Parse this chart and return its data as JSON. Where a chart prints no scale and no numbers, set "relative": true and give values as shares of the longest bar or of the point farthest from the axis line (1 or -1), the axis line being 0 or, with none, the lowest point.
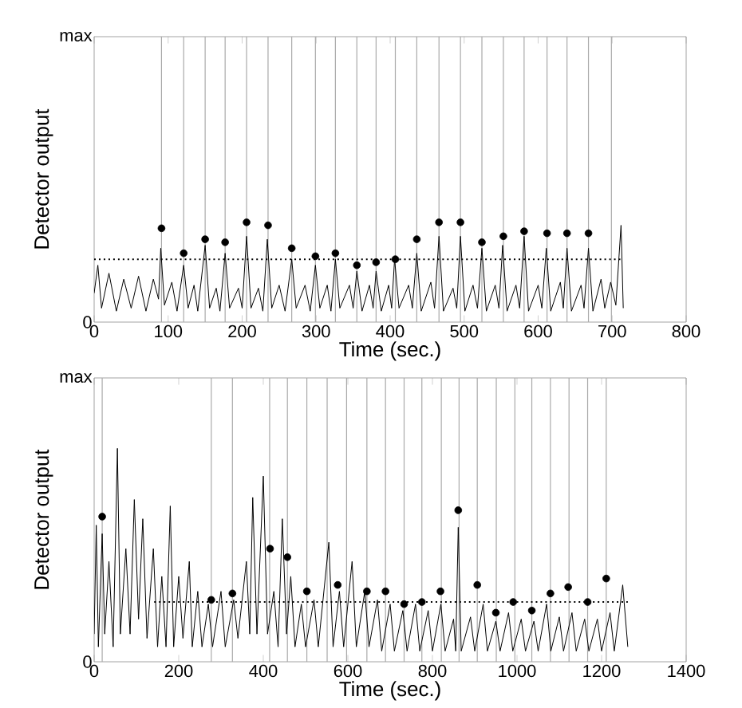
{
  "chart_data": [
    {
      "type": "line",
      "relative": true,
      "xlabel": "Time (sec.)",
      "ylabel": "Detector output",
      "xlim": [
        0,
        800
      ],
      "xticks": [
        0,
        100,
        200,
        300,
        400,
        500,
        600,
        700,
        800
      ],
      "grid": false,
      "annotations": [
        "0",
        "max"
      ],
      "ref_lines": [
        {
          "axis": "x",
          "value": 91,
          "color": "#aaaaaa"
        },
        {
          "axis": "x",
          "value": 121,
          "color": "#aaaaaa"
        },
        {
          "axis": "x",
          "value": 150,
          "color": "#aaaaaa"
        },
        {
          "axis": "x",
          "value": 177,
          "color": "#aaaaaa"
        },
        {
          "axis": "x",
          "value": 206,
          "color": "#aaaaaa"
        },
        {
          "axis": "x",
          "value": 235,
          "color": "#aaaaaa"
        },
        {
          "axis": "x",
          "value": 267,
          "color": "#aaaaaa"
        },
        {
          "axis": "x",
          "value": 299,
          "color": "#aaaaaa"
        },
        {
          "axis": "x",
          "value": 326,
          "color": "#aaaaaa"
        },
        {
          "axis": "x",
          "value": 355,
          "color": "#aaaaaa"
        },
        {
          "axis": "x",
          "value": 381,
          "color": "#aaaaaa"
        },
        {
          "axis": "x",
          "value": 407,
          "color": "#aaaaaa"
        },
        {
          "axis": "x",
          "value": 436,
          "color": "#aaaaaa"
        },
        {
          "axis": "x",
          "value": 466,
          "color": "#aaaaaa"
        },
        {
          "axis": "x",
          "value": 495,
          "color": "#aaaaaa"
        },
        {
          "axis": "x",
          "value": 524,
          "color": "#aaaaaa"
        },
        {
          "axis": "x",
          "value": 553,
          "color": "#aaaaaa"
        },
        {
          "axis": "x",
          "value": 581,
          "color": "#aaaaaa"
        },
        {
          "axis": "x",
          "value": 612,
          "color": "#aaaaaa"
        },
        {
          "axis": "x",
          "value": 639,
          "color": "#aaaaaa"
        },
        {
          "axis": "x",
          "value": 668,
          "color": "#aaaaaa"
        },
        {
          "axis": "x",
          "value": 699,
          "color": "#aaaaaa"
        }
      ],
      "series": [
        {
          "color": "#000000",
          "line_style": "solid",
          "x": [
            0,
            5,
            10,
            20,
            30,
            40,
            50,
            60,
            70,
            80,
            87,
            90,
            95,
            105,
            112,
            121,
            127,
            135,
            140,
            150,
            156,
            165,
            170,
            177,
            183,
            195,
            200,
            206,
            212,
            222,
            228,
            234,
            240,
            250,
            258,
            267,
            273,
            285,
            292,
            299,
            305,
            315,
            320,
            326,
            332,
            345,
            350,
            355,
            362,
            372,
            377,
            381,
            388,
            398,
            402,
            406,
            412,
            425,
            430,
            436,
            442,
            455,
            460,
            466,
            472,
            485,
            490,
            495,
            501,
            512,
            518,
            524,
            530,
            542,
            547,
            552,
            558,
            570,
            575,
            581,
            587,
            600,
            605,
            611,
            617,
            630,
            634,
            639,
            645,
            658,
            662,
            668,
            674,
            685,
            690,
            698,
            705,
            712,
            715
          ],
          "values": [
            0.29,
            0.57,
            0.14,
            0.49,
            0.11,
            0.43,
            0.14,
            0.46,
            0.11,
            0.43,
            0.23,
            0.74,
            0.17,
            0.4,
            0.11,
            0.57,
            0.14,
            0.37,
            0.11,
            0.77,
            0.14,
            0.34,
            0.11,
            0.69,
            0.14,
            0.34,
            0.14,
            0.86,
            0.14,
            0.34,
            0.11,
            0.83,
            0.14,
            0.37,
            0.11,
            0.63,
            0.14,
            0.37,
            0.11,
            0.57,
            0.14,
            0.37,
            0.11,
            0.63,
            0.14,
            0.37,
            0.14,
            0.51,
            0.11,
            0.37,
            0.14,
            0.51,
            0.11,
            0.37,
            0.14,
            0.63,
            0.14,
            0.37,
            0.14,
            0.69,
            0.11,
            0.4,
            0.14,
            0.86,
            0.11,
            0.34,
            0.14,
            0.86,
            0.11,
            0.37,
            0.14,
            0.74,
            0.11,
            0.37,
            0.14,
            0.77,
            0.11,
            0.37,
            0.14,
            0.86,
            0.11,
            0.37,
            0.14,
            0.74,
            0.11,
            0.4,
            0.14,
            0.74,
            0.11,
            0.37,
            0.14,
            0.74,
            0.11,
            0.43,
            0.14,
            0.4,
            0.17,
            0.97,
            0.14
          ]
        },
        {
          "color": "#000000",
          "line_style": "dotted",
          "x": [
            0,
            715
          ],
          "values": [
            0.63,
            0.63
          ]
        },
        {
          "type": "scatter",
          "color": "#000000",
          "x": [
            91,
            121,
            150,
            177,
            206,
            235,
            267,
            299,
            326,
            355,
            381,
            407,
            436,
            466,
            495,
            524,
            553,
            581,
            612,
            639,
            668
          ],
          "values": [
            0.94,
            0.69,
            0.83,
            0.8,
            1,
            0.97,
            0.74,
            0.66,
            0.69,
            0.57,
            0.6,
            0.63,
            0.83,
            1,
            1,
            0.8,
            0.86,
            0.91,
            0.89,
            0.89,
            0.89
          ]
        }
      ]
    },
    {
      "type": "line",
      "relative": true,
      "xlabel": "Time (sec.)",
      "ylabel": "Detector output",
      "xlim": [
        0,
        1400
      ],
      "xticks": [
        0,
        200,
        400,
        600,
        800,
        1000,
        1200,
        1400
      ],
      "grid": false,
      "annotations": [
        "0",
        "max"
      ],
      "ref_lines": [
        {
          "axis": "x",
          "value": 19,
          "color": "#aaaaaa"
        },
        {
          "axis": "x",
          "value": 277,
          "color": "#aaaaaa"
        },
        {
          "axis": "x",
          "value": 327,
          "color": "#aaaaaa"
        },
        {
          "axis": "x",
          "value": 415,
          "color": "#aaaaaa"
        },
        {
          "axis": "x",
          "value": 457,
          "color": "#aaaaaa"
        },
        {
          "axis": "x",
          "value": 503,
          "color": "#aaaaaa"
        },
        {
          "axis": "x",
          "value": 551,
          "color": "#aaaaaa"
        },
        {
          "axis": "x",
          "value": 597,
          "color": "#aaaaaa"
        },
        {
          "axis": "x",
          "value": 645,
          "color": "#aaaaaa"
        },
        {
          "axis": "x",
          "value": 689,
          "color": "#aaaaaa"
        },
        {
          "axis": "x",
          "value": 733,
          "color": "#aaaaaa"
        },
        {
          "axis": "x",
          "value": 775,
          "color": "#aaaaaa"
        },
        {
          "axis": "x",
          "value": 821,
          "color": "#aaaaaa"
        },
        {
          "axis": "x",
          "value": 863,
          "color": "#aaaaaa"
        },
        {
          "axis": "x",
          "value": 906,
          "color": "#aaaaaa"
        },
        {
          "axis": "x",
          "value": 951,
          "color": "#aaaaaa"
        },
        {
          "axis": "x",
          "value": 995,
          "color": "#aaaaaa"
        },
        {
          "axis": "x",
          "value": 1035,
          "color": "#aaaaaa"
        },
        {
          "axis": "x",
          "value": 1079,
          "color": "#aaaaaa"
        },
        {
          "axis": "x",
          "value": 1123,
          "color": "#aaaaaa"
        },
        {
          "axis": "x",
          "value": 1167,
          "color": "#aaaaaa"
        },
        {
          "axis": "x",
          "value": 1211,
          "color": "#aaaaaa"
        }
      ],
      "series": [
        {
          "color": "#000000",
          "line_style": "solid",
          "x": [
            0,
            5,
            10,
            19,
            25,
            35,
            45,
            55,
            62,
            75,
            85,
            95,
            105,
            115,
            125,
            140,
            150,
            160,
            170,
            180,
            188,
            200,
            210,
            225,
            232,
            245,
            255,
            270,
            280,
            300,
            310,
            330,
            340,
            360,
            368,
            375,
            385,
            400,
            410,
            425,
            435,
            445,
            455,
            465,
            475,
            490,
            500,
            520,
            530,
            555,
            565,
            580,
            590,
            610,
            620,
            640,
            650,
            670,
            680,
            700,
            710,
            730,
            740,
            760,
            770,
            790,
            800,
            820,
            830,
            850,
            855,
            861,
            868,
            890,
            900,
            920,
            930,
            950,
            960,
            980,
            990,
            1010,
            1020,
            1040,
            1050,
            1070,
            1080,
            1100,
            1110,
            1130,
            1140,
            1160,
            1170,
            1190,
            1200,
            1220,
            1230,
            1250,
            1262
          ],
          "values": [
            0.13,
            0.64,
            0.07,
            0.6,
            0.13,
            0.47,
            0.07,
            1,
            0.13,
            0.53,
            0.13,
            0.76,
            0.2,
            0.67,
            0.11,
            0.53,
            0.07,
            0.4,
            0.07,
            0.73,
            0.07,
            0.4,
            0.11,
            0.47,
            0.07,
            0.33,
            0.07,
            0.27,
            0.07,
            0.33,
            0.07,
            0.29,
            0.11,
            0.47,
            0.13,
            0.77,
            0.13,
            0.87,
            0.13,
            0.33,
            0.07,
            0.67,
            0.13,
            0.4,
            0.07,
            0.27,
            0.07,
            0.29,
            0.07,
            0.56,
            0.07,
            0.33,
            0.07,
            0.47,
            0.07,
            0.33,
            0.07,
            0.29,
            0.05,
            0.27,
            0.05,
            0.24,
            0.05,
            0.27,
            0.05,
            0.24,
            0.05,
            0.27,
            0.05,
            0.2,
            0.05,
            0.63,
            0.05,
            0.21,
            0.05,
            0.27,
            0.05,
            0.19,
            0.05,
            0.23,
            0.05,
            0.2,
            0.05,
            0.19,
            0.05,
            0.27,
            0.05,
            0.21,
            0.05,
            0.23,
            0.05,
            0.2,
            0.05,
            0.2,
            0.05,
            0.23,
            0.05,
            0.36,
            0.07
          ]
        },
        {
          "color": "#000000",
          "line_style": "dotted",
          "x": [
            142,
            1262
          ],
          "values": [
            0.28,
            0.28
          ]
        },
        {
          "type": "scatter",
          "color": "#000000",
          "x": [
            19,
            277,
            327,
            416,
            457,
            503,
            576,
            645,
            689,
            733,
            775,
            819,
            861,
            906,
            950,
            991,
            1035,
            1079,
            1121,
            1167,
            1211
          ],
          "values": [
            0.68,
            0.29,
            0.32,
            0.53,
            0.49,
            0.33,
            0.36,
            0.33,
            0.33,
            0.27,
            0.28,
            0.33,
            0.71,
            0.36,
            0.23,
            0.28,
            0.24,
            0.32,
            0.35,
            0.28,
            0.39
          ]
        }
      ]
    }
  ]
}
